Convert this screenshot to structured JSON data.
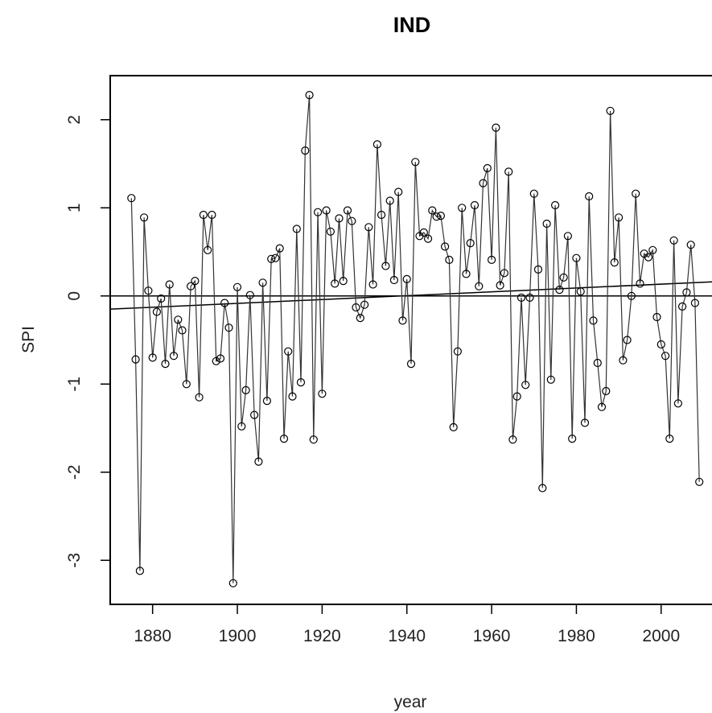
{
  "chart_data": {
    "type": "line",
    "title": "IND",
    "xlabel": "year",
    "ylabel": "SPI",
    "xlim": [
      1870,
      2012
    ],
    "ylim": [
      -3.5,
      2.5
    ],
    "xticks": [
      "1880",
      "1900",
      "1920",
      "1940",
      "1960",
      "1980",
      "2000"
    ],
    "yticks": [
      "-3",
      "-2",
      "-1",
      "0",
      "1",
      "2"
    ],
    "grid": false,
    "legend": "none",
    "reference_line": 0,
    "trend_line": {
      "x": [
        1870,
        2012
      ],
      "y": [
        -0.15,
        0.16
      ]
    },
    "series": [
      {
        "x": [
          1875,
          1876,
          1877,
          1878,
          1879,
          1880,
          1881,
          1882,
          1883,
          1884,
          1885,
          1886,
          1887,
          1888,
          1889,
          1890,
          1891,
          1892,
          1893,
          1894,
          1895,
          1896,
          1897,
          1898,
          1899,
          1900,
          1901,
          1902,
          1903,
          1904,
          1905,
          1906,
          1907,
          1908,
          1909,
          1910,
          1911,
          1912,
          1913,
          1914,
          1915,
          1916,
          1917,
          1918,
          1919,
          1920,
          1921,
          1922,
          1923,
          1924,
          1925,
          1926,
          1927,
          1928,
          1929,
          1930,
          1931,
          1932,
          1933,
          1934,
          1935,
          1936,
          1937,
          1938,
          1939,
          1940,
          1941,
          1942,
          1943,
          1944,
          1945,
          1946,
          1947,
          1948,
          1949,
          1950,
          1951,
          1952,
          1953,
          1954,
          1955,
          1956,
          1957,
          1958,
          1959,
          1960,
          1961,
          1962,
          1963,
          1964,
          1965,
          1966,
          1967,
          1968,
          1969,
          1970,
          1971,
          1972,
          1973,
          1974,
          1975,
          1976,
          1977,
          1978,
          1979,
          1980,
          1981,
          1982,
          1983,
          1984,
          1985,
          1986,
          1987,
          1988,
          1989,
          1990,
          1991,
          1992,
          1993,
          1994,
          1995,
          1996,
          1997,
          1998,
          1999,
          2000,
          2001,
          2002,
          2003,
          2004,
          2005,
          2006,
          2007,
          2008,
          2009
        ],
        "y": [
          1.11,
          -0.72,
          -3.12,
          0.89,
          0.06,
          -0.7,
          -0.18,
          -0.03,
          -0.77,
          0.13,
          -0.68,
          -0.27,
          -0.39,
          -1.0,
          0.11,
          0.17,
          -1.15,
          0.92,
          0.52,
          0.92,
          -0.74,
          -0.71,
          -0.08,
          -0.36,
          -3.26,
          0.1,
          -1.48,
          -1.07,
          0.01,
          -1.35,
          -1.88,
          0.15,
          -1.19,
          0.42,
          0.43,
          0.54,
          -1.62,
          -0.63,
          -1.14,
          0.76,
          -0.98,
          1.65,
          2.28,
          -1.63,
          0.95,
          -1.11,
          0.97,
          0.73,
          0.14,
          0.88,
          0.17,
          0.97,
          0.85,
          -0.13,
          -0.25,
          -0.1,
          0.78,
          0.13,
          1.72,
          0.92,
          0.34,
          1.08,
          0.18,
          1.18,
          -0.28,
          0.19,
          -0.77,
          1.52,
          0.68,
          0.72,
          0.65,
          0.97,
          0.9,
          0.91,
          0.56,
          0.41,
          -1.49,
          -0.63,
          1.0,
          0.25,
          0.6,
          1.03,
          0.11,
          1.28,
          1.45,
          0.41,
          1.91,
          0.12,
          0.26,
          1.41,
          -1.63,
          -1.14,
          -0.02,
          -1.01,
          -0.02,
          1.16,
          0.3,
          -2.18,
          0.82,
          -0.95,
          1.03,
          0.07,
          0.21,
          0.68,
          -1.62,
          0.43,
          0.05,
          -1.44,
          1.13,
          -0.28,
          -0.76,
          -1.26,
          -1.08,
          2.1,
          0.38,
          0.89,
          -0.73,
          -0.5,
          0.0,
          1.16,
          0.14,
          0.48,
          0.44,
          0.52,
          -0.24,
          -0.55,
          -0.68,
          -1.62,
          0.63,
          -1.22,
          -0.12,
          0.04,
          0.58,
          -0.08,
          -2.11
        ]
      }
    ]
  }
}
